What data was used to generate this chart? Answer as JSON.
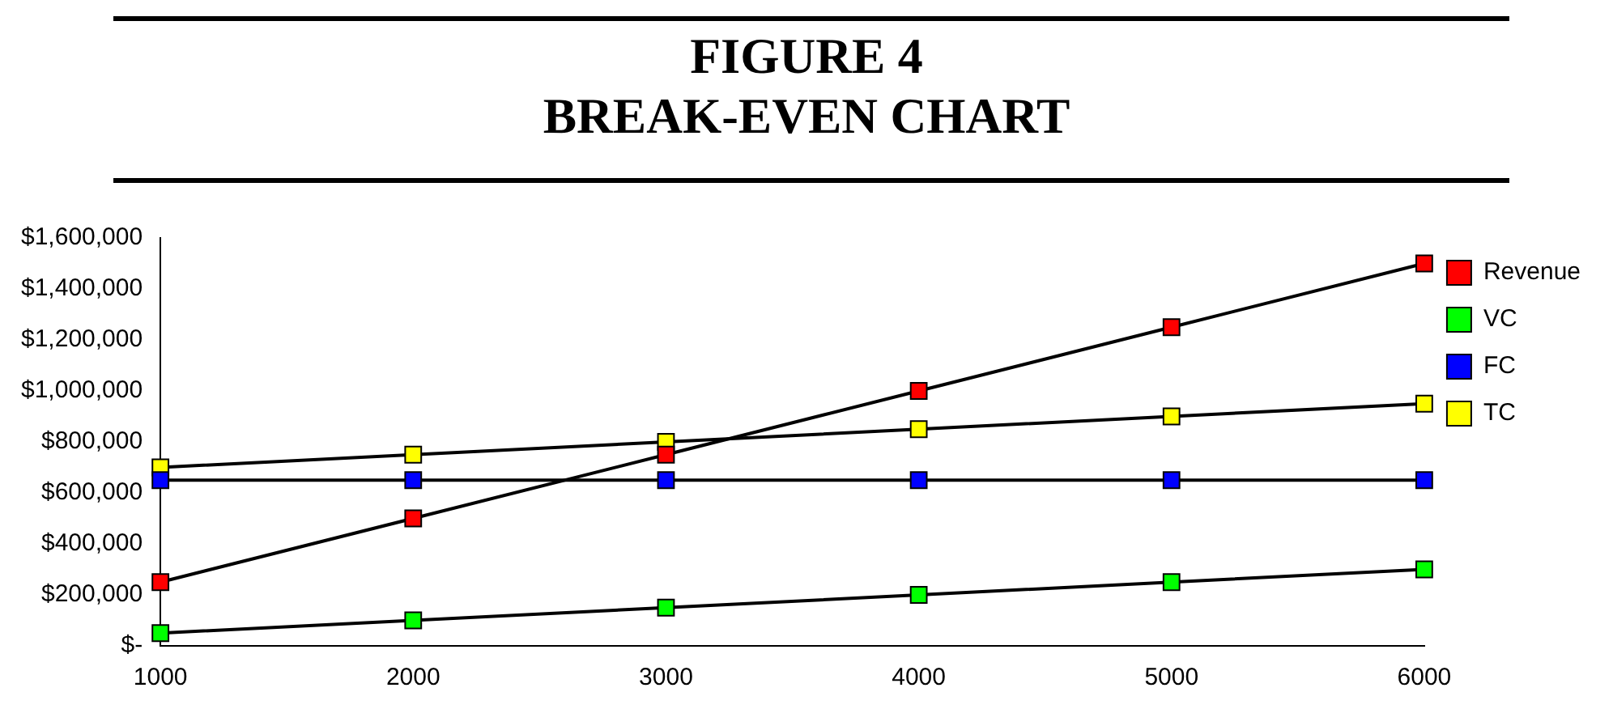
{
  "chart_data": {
    "type": "line",
    "title": "FIGURE 4",
    "subtitle": "BREAK-EVEN CHART",
    "x": [
      1000,
      2000,
      3000,
      4000,
      5000,
      6000
    ],
    "series": [
      {
        "name": "Revenue",
        "color": "#ff0000",
        "values": [
          250000,
          500000,
          750000,
          1000000,
          1250000,
          1500000
        ]
      },
      {
        "name": "VC",
        "color": "#00ff00",
        "values": [
          50000,
          100000,
          150000,
          200000,
          250000,
          300000
        ]
      },
      {
        "name": "FC",
        "color": "#0000ff",
        "values": [
          650000,
          650000,
          650000,
          650000,
          650000,
          650000
        ]
      },
      {
        "name": "TC",
        "color": "#ffff00",
        "values": [
          700000,
          750000,
          800000,
          850000,
          900000,
          950000
        ]
      }
    ],
    "xlim": [
      1000,
      6000
    ],
    "xticks": [
      1000,
      2000,
      3000,
      4000,
      5000,
      6000
    ],
    "ylim": [
      0,
      1600000
    ],
    "yticks": [
      {
        "value": 0,
        "label": "$-"
      },
      {
        "value": 200000,
        "label": "$200,000"
      },
      {
        "value": 400000,
        "label": "$400,000"
      },
      {
        "value": 600000,
        "label": "$600,000"
      },
      {
        "value": 800000,
        "label": "$800,000"
      },
      {
        "value": 1000000,
        "label": "$1,000,000"
      },
      {
        "value": 1200000,
        "label": "$1,200,000"
      },
      {
        "value": 1400000,
        "label": "$1,400,000"
      },
      {
        "value": 1600000,
        "label": "$1,600,000"
      }
    ],
    "grid": false,
    "legend": "right",
    "marker": "square",
    "line_style": "solid"
  }
}
